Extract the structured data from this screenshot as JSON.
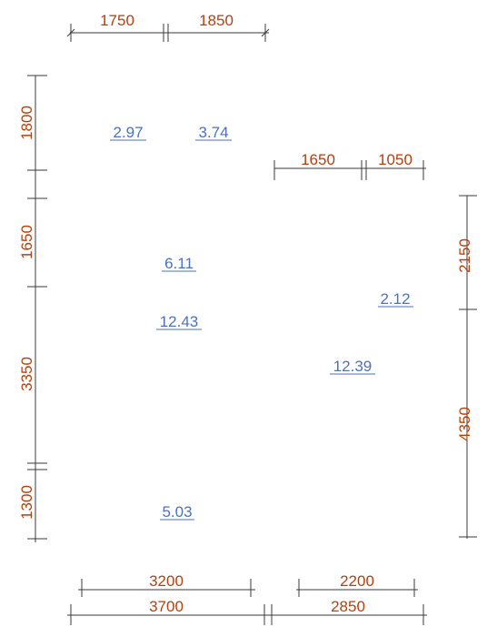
{
  "dimensions": {
    "top": [
      "1750",
      "1850"
    ],
    "right_top": [
      "1650",
      "1050"
    ],
    "left": [
      "1800",
      "1650",
      "3350",
      "1300"
    ],
    "right": [
      "2150",
      "4350"
    ],
    "bottom_inner": [
      "3200",
      "2200"
    ],
    "bottom_outer": [
      "3700",
      "2850"
    ]
  },
  "room_areas": [
    "2.97",
    "3.74",
    "6.11",
    "12.43",
    "2.12",
    "12.39",
    "5.03"
  ],
  "colors": {
    "dimension_text": "#b5400e",
    "area_text": "#4a72c2",
    "lines": "#3a3a3a"
  }
}
